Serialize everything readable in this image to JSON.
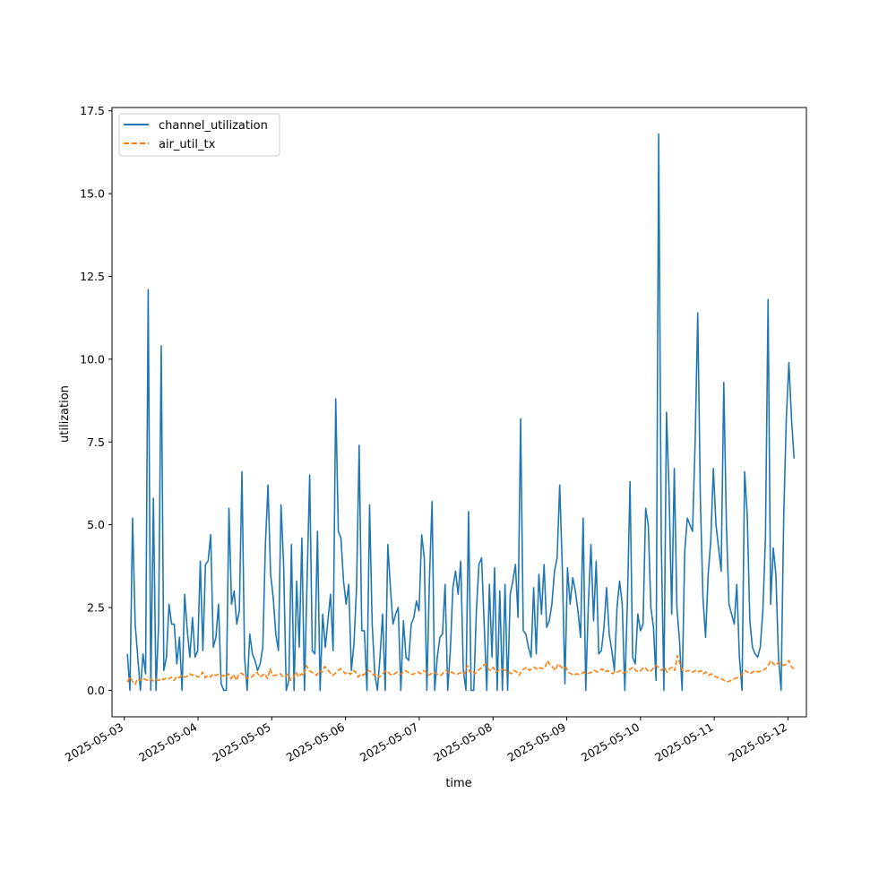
{
  "chart_data": {
    "type": "line",
    "xlabel": "time",
    "ylabel": "utilization",
    "x_start": "2025-05-03T01:00",
    "x_end": "2025-05-12T02:00",
    "xlim": [
      "2025-05-02T20:00",
      "2025-05-12T06:00"
    ],
    "ylim": [
      -0.8,
      17.6
    ],
    "yticks": [
      0.0,
      2.5,
      5.0,
      7.5,
      10.0,
      12.5,
      15.0,
      17.5
    ],
    "ytick_labels": [
      "0.0",
      "2.5",
      "5.0",
      "7.5",
      "10.0",
      "12.5",
      "15.0",
      "17.5"
    ],
    "xticks": [
      "2025-05-03",
      "2025-05-04",
      "2025-05-05",
      "2025-05-06",
      "2025-05-07",
      "2025-05-08",
      "2025-05-09",
      "2025-05-10",
      "2025-05-11",
      "2025-05-12"
    ],
    "legend_position": "top-left",
    "grid": false,
    "series": [
      {
        "name": "channel_utilization",
        "color": "#1f77b4",
        "style": "solid",
        "values": [
          1.1,
          0.0,
          5.2,
          2.0,
          1.0,
          0.0,
          1.1,
          0.5,
          12.1,
          0.0,
          5.8,
          0.0,
          2.0,
          10.4,
          0.6,
          1.0,
          2.6,
          2.0,
          2.0,
          0.8,
          1.6,
          0.0,
          2.9,
          1.8,
          1.0,
          2.2,
          1.0,
          1.2,
          3.9,
          1.2,
          3.8,
          3.9,
          4.7,
          1.3,
          1.6,
          2.6,
          0.2,
          0.0,
          0.0,
          5.5,
          2.6,
          3.0,
          2.0,
          2.4,
          6.6,
          1.0,
          0.0,
          1.7,
          1.1,
          0.9,
          0.6,
          0.8,
          1.3,
          4.4,
          6.2,
          3.5,
          2.8,
          1.7,
          1.2,
          5.6,
          3.8,
          0.0,
          0.3,
          4.4,
          0.0,
          3.3,
          1.3,
          4.6,
          0.0,
          3.3,
          6.5,
          1.2,
          1.1,
          4.8,
          0.0,
          2.3,
          1.3,
          2.1,
          2.9,
          1.2,
          8.8,
          4.8,
          4.6,
          3.3,
          2.6,
          3.2,
          0.6,
          1.4,
          3.1,
          7.4,
          1.8,
          1.8,
          0.0,
          5.6,
          2.0,
          0.5,
          0.0,
          1.0,
          2.3,
          0.0,
          4.4,
          3.1,
          2.0,
          2.3,
          2.5,
          0.0,
          2.1,
          1.0,
          0.9,
          2.0,
          2.2,
          2.7,
          2.4,
          4.7,
          4.0,
          0.0,
          3.4,
          5.7,
          0.0,
          1.0,
          1.6,
          1.7,
          3.2,
          0.0,
          1.2,
          3.1,
          3.6,
          2.9,
          3.9,
          0.6,
          0.0,
          5.4,
          0.0,
          0.0,
          2.4,
          3.8,
          4.0,
          2.0,
          0.0,
          3.2,
          1.0,
          3.7,
          0.0,
          3.0,
          0.0,
          3.2,
          0.0,
          2.9,
          3.3,
          3.8,
          2.2,
          8.2,
          1.8,
          1.7,
          1.3,
          1.0,
          3.1,
          1.1,
          3.5,
          2.3,
          3.8,
          1.9,
          2.1,
          2.6,
          3.6,
          4.0,
          6.2,
          3.7,
          0.2,
          3.7,
          2.6,
          3.4,
          3.0,
          2.4,
          1.6,
          5.2,
          0.0,
          2.6,
          4.4,
          2.1,
          3.9,
          1.1,
          1.2,
          1.9,
          3.1,
          1.7,
          1.2,
          0.6,
          2.5,
          3.3,
          2.6,
          0.0,
          2.7,
          6.3,
          1.0,
          0.8,
          2.3,
          1.8,
          2.0,
          5.5,
          5.0,
          2.5,
          1.9,
          0.3,
          16.8,
          4.5,
          0.0,
          8.4,
          6.0,
          2.3,
          6.7,
          2.5,
          1.5,
          0.0,
          4.2,
          5.2,
          5.0,
          4.8,
          7.5,
          11.4,
          5.8,
          2.8,
          1.6,
          3.5,
          4.5,
          6.7,
          5.0,
          4.3,
          3.6,
          9.3,
          5.0,
          2.6,
          2.3,
          2.0,
          3.2,
          1.0,
          0.0,
          6.6,
          5.3,
          2.1,
          1.3,
          1.1,
          1.0,
          1.3,
          2.4,
          4.6,
          11.8,
          2.6,
          4.3,
          3.5,
          1.0,
          0.0,
          5.2,
          8.2,
          9.9,
          8.2,
          7.0
        ]
      },
      {
        "name": "air_util_tx",
        "color": "#ff7f0e",
        "style": "dashed",
        "values": [
          0.25,
          0.4,
          0.26,
          0.18,
          0.35,
          0.3,
          0.38,
          0.32,
          0.3,
          0.35,
          0.28,
          0.33,
          0.3,
          0.36,
          0.32,
          0.38,
          0.35,
          0.4,
          0.3,
          0.42,
          0.38,
          0.45,
          0.4,
          0.42,
          0.5,
          0.45,
          0.48,
          0.4,
          0.42,
          0.55,
          0.38,
          0.45,
          0.4,
          0.5,
          0.45,
          0.48,
          0.42,
          0.45,
          0.4,
          0.5,
          0.35,
          0.48,
          0.3,
          0.5,
          0.52,
          0.45,
          0.35,
          0.42,
          0.4,
          0.5,
          0.55,
          0.4,
          0.45,
          0.5,
          0.35,
          0.65,
          0.45,
          0.45,
          0.48,
          0.5,
          0.4,
          0.42,
          0.5,
          0.3,
          0.38,
          0.55,
          0.4,
          0.5,
          0.45,
          0.75,
          0.6,
          0.55,
          0.5,
          0.45,
          0.6,
          0.55,
          0.72,
          0.65,
          0.55,
          0.45,
          0.5,
          0.58,
          0.65,
          0.6,
          0.5,
          0.55,
          0.48,
          0.6,
          0.55,
          0.4,
          0.5,
          0.45,
          0.55,
          0.6,
          0.55,
          0.45,
          0.5,
          0.4,
          0.45,
          0.55,
          0.6,
          0.5,
          0.45,
          0.5,
          0.55,
          0.48,
          0.52,
          0.6,
          0.55,
          0.5,
          0.48,
          0.52,
          0.55,
          0.5,
          0.6,
          0.55,
          0.45,
          0.5,
          0.55,
          0.5,
          0.48,
          0.45,
          0.55,
          0.6,
          0.5,
          0.55,
          0.5,
          0.48,
          0.52,
          0.55,
          0.5,
          0.75,
          0.55,
          0.6,
          0.5,
          0.6,
          0.65,
          0.72,
          0.8,
          0.65,
          0.6,
          0.7,
          0.55,
          0.6,
          0.65,
          0.62,
          0.6,
          0.55,
          0.5,
          0.6,
          0.55,
          0.45,
          0.6,
          0.65,
          0.7,
          0.6,
          0.65,
          0.7,
          0.62,
          0.68,
          0.65,
          0.7,
          0.9,
          0.75,
          0.7,
          0.6,
          0.8,
          0.72,
          0.65,
          0.7,
          0.55,
          0.5,
          0.45,
          0.5,
          0.48,
          0.5,
          0.55,
          0.5,
          0.52,
          0.55,
          0.6,
          0.55,
          0.6,
          0.65,
          0.55,
          0.6,
          0.55,
          0.5,
          0.58,
          0.55,
          0.6,
          0.52,
          0.55,
          0.6,
          0.65,
          0.7,
          0.6,
          0.55,
          0.6,
          0.7,
          0.65,
          0.55,
          0.6,
          0.7,
          0.75,
          0.65,
          0.6,
          0.7,
          0.55,
          0.65,
          0.7,
          0.6,
          1.05,
          0.8,
          0.6,
          0.55,
          0.6,
          0.58,
          0.55,
          0.6,
          0.55,
          0.6,
          0.5,
          0.55,
          0.45,
          0.5,
          0.45,
          0.4,
          0.38,
          0.35,
          0.3,
          0.25,
          0.28,
          0.3,
          0.35,
          0.38,
          0.4,
          0.5,
          0.6,
          0.55,
          0.5,
          0.55,
          0.6,
          0.55,
          0.58,
          0.6,
          0.65,
          0.75,
          0.9,
          0.8,
          0.75,
          0.85,
          0.8,
          0.75,
          0.8,
          0.9,
          0.7,
          0.65
        ]
      }
    ]
  }
}
